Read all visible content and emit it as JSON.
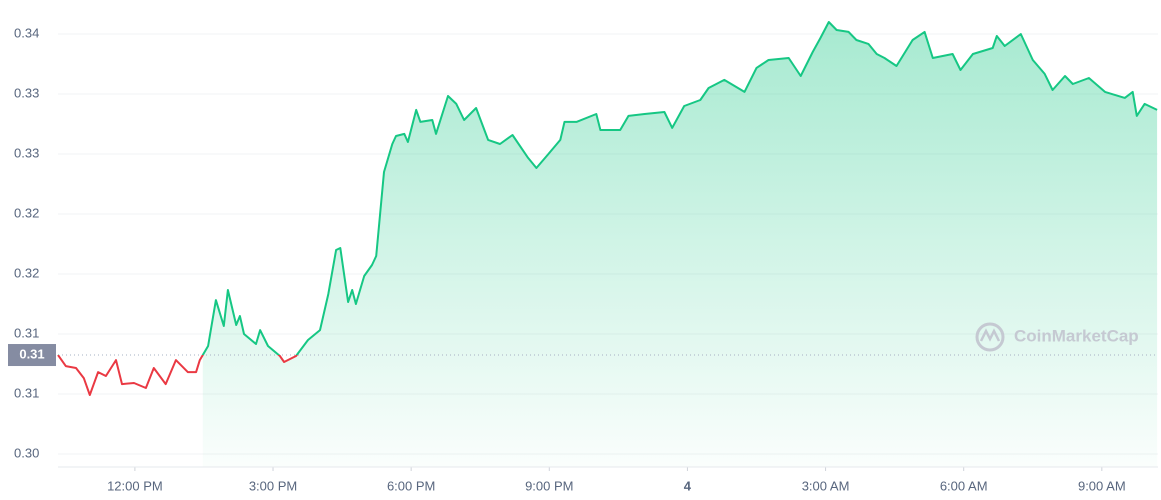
{
  "chart_data": {
    "type": "line",
    "x": [
      10.33,
      10.5,
      10.72,
      10.89,
      11.02,
      11.2,
      11.37,
      11.59,
      11.72,
      11.98,
      12.24,
      12.41,
      12.67,
      12.89,
      13.15,
      13.33,
      13.41,
      13.59,
      13.76,
      13.93,
      14.02,
      14.2,
      14.28,
      14.37,
      14.63,
      14.72,
      14.89,
      15.15,
      15.24,
      15.5,
      15.76,
      16.02,
      16.2,
      16.37,
      16.46,
      16.63,
      16.72,
      16.8,
      16.98,
      17.15,
      17.24,
      17.41,
      17.59,
      17.67,
      17.85,
      17.93,
      18.11,
      18.2,
      18.46,
      18.54,
      18.8,
      18.98,
      19.15,
      19.41,
      19.67,
      19.93,
      20.2,
      20.54,
      20.72,
      20.98,
      21.24,
      21.33,
      21.59,
      22.02,
      22.11,
      22.54,
      22.72,
      23.07,
      23.5,
      23.67,
      23.93,
      24.28,
      24.46,
      24.8,
      25.24,
      25.5,
      25.76,
      26.2,
      26.46,
      26.72,
      26.89,
      27.07,
      27.24,
      27.5,
      27.67,
      27.93,
      28.11,
      28.28,
      28.54,
      28.89,
      29.15,
      29.33,
      29.76,
      29.93,
      30.2,
      30.63,
      30.72,
      30.89,
      31.24,
      31.5,
      31.76,
      31.93,
      32.2,
      32.37,
      32.72,
      33.07,
      33.5,
      33.67,
      33.76,
      33.93,
      34.2
    ],
    "values": [
      0.30825,
      0.30733,
      0.30717,
      0.30633,
      0.30492,
      0.30683,
      0.3065,
      0.30783,
      0.30583,
      0.30592,
      0.3055,
      0.30717,
      0.30583,
      0.30783,
      0.30683,
      0.30683,
      0.30783,
      0.309,
      0.31283,
      0.31067,
      0.31367,
      0.31075,
      0.3115,
      0.31,
      0.30917,
      0.31033,
      0.309,
      0.30817,
      0.30767,
      0.30817,
      0.3095,
      0.31033,
      0.31333,
      0.317,
      0.31717,
      0.31267,
      0.31367,
      0.3125,
      0.31483,
      0.31575,
      0.3165,
      0.3235,
      0.32583,
      0.3265,
      0.32667,
      0.326,
      0.32867,
      0.32767,
      0.32783,
      0.32667,
      0.32983,
      0.32917,
      0.32783,
      0.32883,
      0.32617,
      0.32583,
      0.32658,
      0.32467,
      0.32383,
      0.325,
      0.32617,
      0.32767,
      0.32767,
      0.32833,
      0.327,
      0.327,
      0.32817,
      0.32833,
      0.3285,
      0.32717,
      0.329,
      0.3295,
      0.3305,
      0.33117,
      0.33017,
      0.33217,
      0.33283,
      0.333,
      0.3315,
      0.3335,
      0.33467,
      0.336,
      0.33533,
      0.33517,
      0.3345,
      0.33417,
      0.33333,
      0.333,
      0.33233,
      0.3345,
      0.33517,
      0.333,
      0.33333,
      0.332,
      0.33333,
      0.33383,
      0.33483,
      0.334,
      0.335,
      0.33283,
      0.33167,
      0.33033,
      0.3315,
      0.33083,
      0.33133,
      0.33017,
      0.32967,
      0.33017,
      0.32817,
      0.32917,
      0.32867
    ],
    "color": "#16c784",
    "color_below": "#ea3943",
    "baseline": {
      "value": 0.30825,
      "label": "0.31"
    },
    "xlim": [
      10.33,
      34.22
    ],
    "xticks": [
      {
        "value": 12,
        "label": "12:00 PM"
      },
      {
        "value": 15,
        "label": "3:00 PM"
      },
      {
        "value": 18,
        "label": "6:00 PM"
      },
      {
        "value": 21,
        "label": "9:00 PM"
      },
      {
        "value": 24,
        "label": "4",
        "bold": true
      },
      {
        "value": 27,
        "label": "3:00 AM"
      },
      {
        "value": 30,
        "label": "6:00 AM"
      },
      {
        "value": 33,
        "label": "9:00 AM"
      }
    ],
    "ylim": [
      0.29892,
      0.33783
    ],
    "yticks": [
      {
        "value": 0.335,
        "label": "0.34"
      },
      {
        "value": 0.33,
        "label": "0.33"
      },
      {
        "value": 0.325,
        "label": "0.33"
      },
      {
        "value": 0.32,
        "label": "0.32"
      },
      {
        "value": 0.315,
        "label": "0.32"
      },
      {
        "value": 0.31,
        "label": "0.31"
      },
      {
        "value": 0.305,
        "label": "0.31"
      },
      {
        "value": 0.3,
        "label": "0.30"
      }
    ],
    "grid": true,
    "watermark": "CoinMarketCap"
  }
}
